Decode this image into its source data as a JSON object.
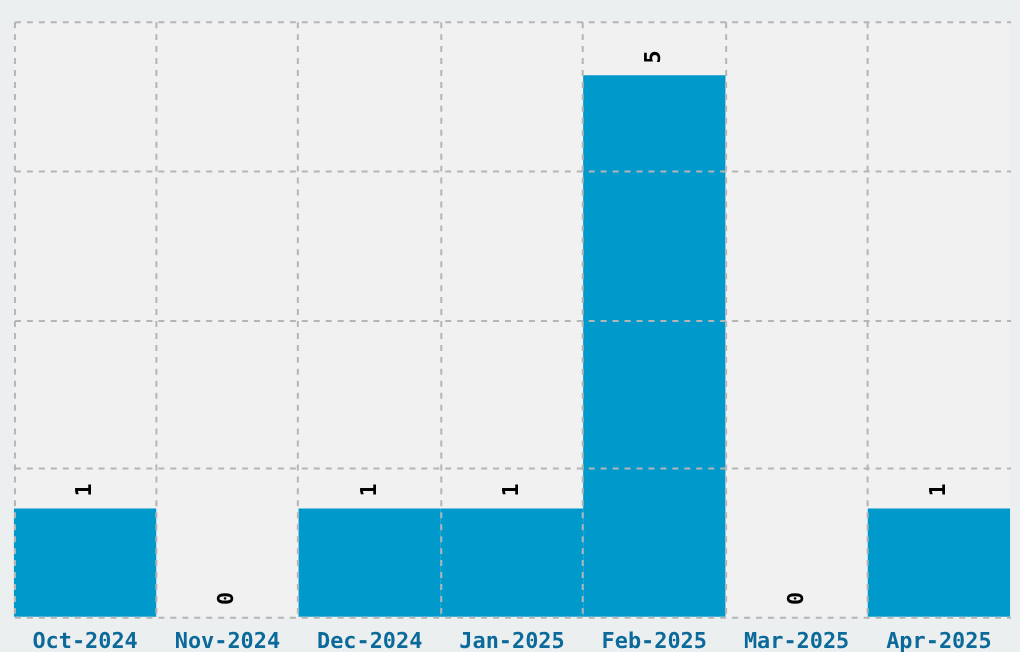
{
  "chart_data": {
    "type": "bar",
    "categories": [
      "Oct-2024",
      "Nov-2024",
      "Dec-2024",
      "Jan-2025",
      "Feb-2025",
      "Mar-2025",
      "Apr-2025"
    ],
    "values": [
      1,
      0,
      1,
      1,
      5,
      0,
      1
    ],
    "color": "#0099cc",
    "ylim": [
      0,
      5.5
    ],
    "yticks": [
      {
        "value": 0,
        "label": null
      },
      {
        "value": 1.375,
        "label": null
      },
      {
        "value": 2.75,
        "label": null
      },
      {
        "value": 4.125,
        "label": null
      },
      {
        "value": 5.5,
        "label": null
      }
    ],
    "grid": true,
    "tick_labels": "x",
    "data_labels": true
  }
}
